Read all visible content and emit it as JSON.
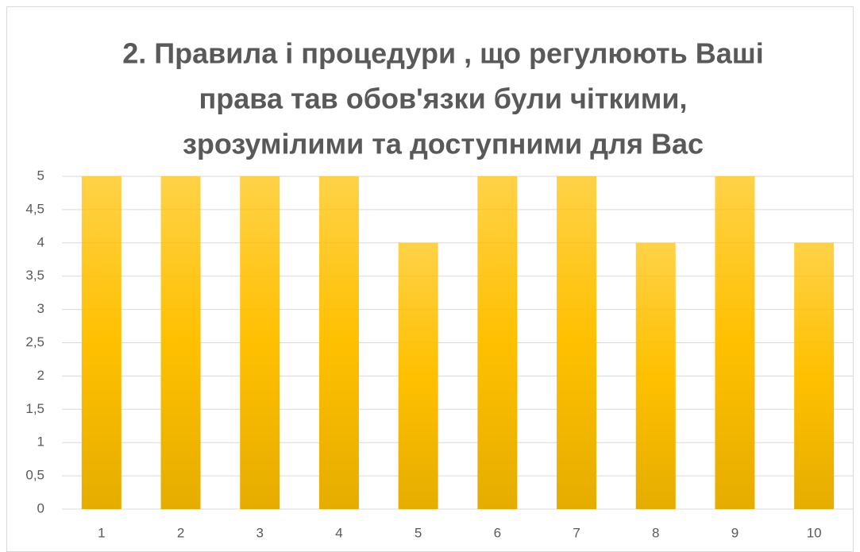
{
  "chart_data": {
    "type": "bar",
    "title": [
      "2. Правила  і процедури , що регулюють Ваші",
      "права тав обов'язки  були чіткими,",
      "зрозумілими та доступними  для Вас"
    ],
    "categories": [
      "1",
      "2",
      "3",
      "4",
      "5",
      "6",
      "7",
      "8",
      "9",
      "10"
    ],
    "values": [
      5,
      5,
      5,
      5,
      4,
      5,
      5,
      4,
      5,
      4
    ],
    "color": "#ffc000",
    "ylim": [
      0,
      5
    ],
    "yticks": [
      0,
      {
        "value": 0.5,
        "label": "0,5"
      },
      1,
      {
        "value": 1.5,
        "label": "1,5"
      },
      2,
      {
        "value": 2.5,
        "label": "2,5"
      },
      3,
      {
        "value": 3.5,
        "label": "3,5"
      },
      4,
      {
        "value": 4.5,
        "label": "4,5"
      },
      5
    ],
    "grid": true
  }
}
